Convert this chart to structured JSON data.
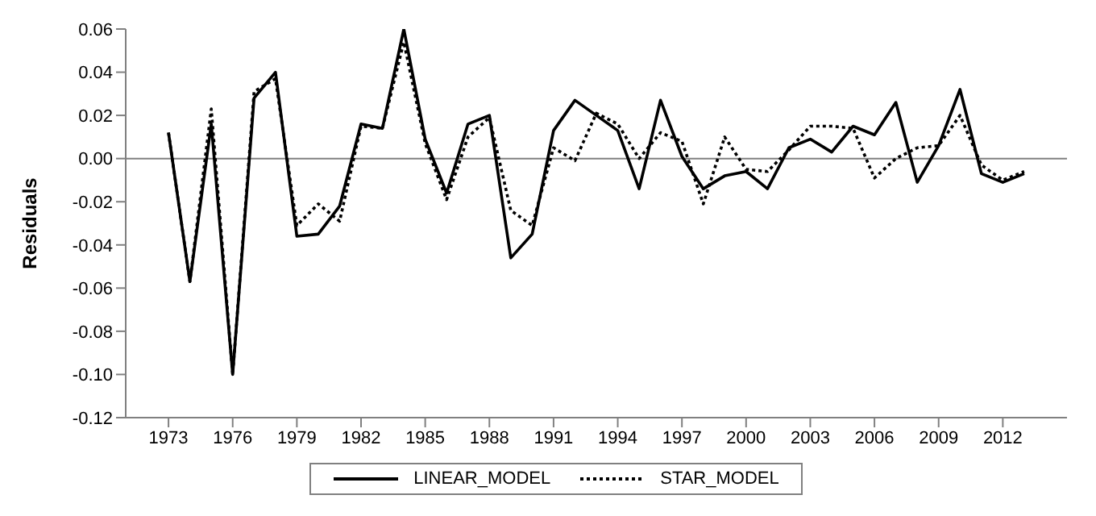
{
  "chart_data": {
    "type": "line",
    "ylabel": "Residuals",
    "x": [
      1973,
      1974,
      1975,
      1976,
      1977,
      1978,
      1979,
      1980,
      1981,
      1982,
      1983,
      1984,
      1985,
      1986,
      1987,
      1988,
      1989,
      1990,
      1991,
      1992,
      1993,
      1994,
      1995,
      1996,
      1997,
      1998,
      1999,
      2000,
      2001,
      2002,
      2003,
      2004,
      2005,
      2006,
      2007,
      2008,
      2009,
      2010,
      2011,
      2012,
      2013
    ],
    "series": [
      {
        "name": "LINEAR_MODEL",
        "color": "#000000",
        "line_style": "solid",
        "values": [
          0.012,
          -0.057,
          0.016,
          -0.1,
          0.028,
          0.04,
          -0.036,
          -0.035,
          -0.022,
          0.016,
          0.014,
          0.06,
          0.009,
          -0.016,
          0.016,
          0.02,
          -0.046,
          -0.035,
          0.013,
          0.027,
          0.02,
          0.013,
          -0.014,
          0.027,
          0.001,
          -0.014,
          -0.008,
          -0.006,
          -0.014,
          0.005,
          0.009,
          0.003,
          0.015,
          0.011,
          0.026,
          -0.011,
          0.006,
          0.032,
          -0.007,
          -0.011,
          -0.007
        ]
      },
      {
        "name": "STAR_MODEL",
        "color": "#000000",
        "line_style": "dotted",
        "values": [
          0.012,
          -0.057,
          0.023,
          -0.1,
          0.031,
          0.037,
          -0.031,
          -0.021,
          -0.029,
          0.015,
          0.014,
          0.054,
          0.007,
          -0.019,
          0.01,
          0.019,
          -0.024,
          -0.031,
          0.005,
          -0.001,
          0.021,
          0.016,
          0.0,
          0.012,
          0.008,
          -0.021,
          0.01,
          -0.005,
          -0.006,
          0.004,
          0.015,
          0.015,
          0.014,
          -0.009,
          0.0,
          0.005,
          0.006,
          0.02,
          -0.003,
          -0.01,
          -0.006
        ]
      }
    ],
    "xlim": [
      1971,
      2015
    ],
    "xticks": [
      1973,
      1976,
      1979,
      1982,
      1985,
      1988,
      1991,
      1994,
      1997,
      2000,
      2003,
      2006,
      2009,
      2012
    ],
    "ylim": [
      -0.12,
      0.06
    ],
    "yticks": [
      {
        "value": -0.12,
        "label": "-0.12"
      },
      {
        "value": -0.1,
        "label": "-0.10"
      },
      {
        "value": -0.08,
        "label": "-0.08"
      },
      {
        "value": -0.06,
        "label": "-0.06"
      },
      {
        "value": -0.04,
        "label": "-0.04"
      },
      {
        "value": -0.02,
        "label": "-0.02"
      },
      {
        "value": 0,
        "label": "0.00"
      },
      {
        "value": 0.02,
        "label": "0.02"
      },
      {
        "value": 0.04,
        "label": "0.04"
      },
      {
        "value": 0.06,
        "label": "0.06"
      }
    ],
    "ref_lines": [
      {
        "axis": "y",
        "value": 0,
        "color": "#808080"
      }
    ],
    "grid": false,
    "legend": "bottom",
    "marker": "none"
  }
}
